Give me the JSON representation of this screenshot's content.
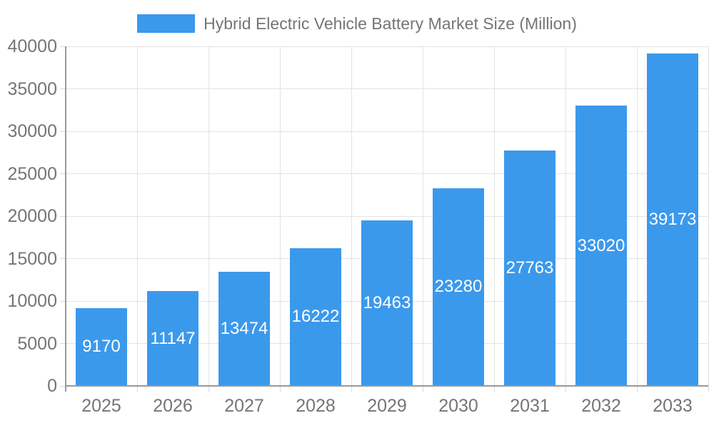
{
  "legend": {
    "label": "Hybrid Electric Vehicle Battery Market Size (Million)"
  },
  "chart_data": {
    "type": "bar",
    "title": "Hybrid Electric Vehicle Battery Market Size (Million)",
    "categories": [
      "2025",
      "2026",
      "2027",
      "2028",
      "2029",
      "2030",
      "2031",
      "2032",
      "2033"
    ],
    "values": [
      9170,
      11147,
      13474,
      16222,
      19463,
      23280,
      27763,
      33020,
      39173
    ],
    "xlabel": "",
    "ylabel": "",
    "ylim": [
      0,
      40000
    ],
    "ytick_step": 5000,
    "yticks": [
      0,
      5000,
      10000,
      15000,
      20000,
      25000,
      30000,
      35000,
      40000
    ],
    "grid": true,
    "legend_position": "top-center",
    "value_label_position": "inside-center",
    "colors": {
      "bar": "#3B99EC",
      "value_label": "#FFFFFF",
      "axis_text": "#757575",
      "legend_text": "#757575",
      "grid_line": "#E3E3E3",
      "tick_line": "#D9D9D9",
      "axis_line": "#999999",
      "background": "#FFFFFF"
    }
  }
}
